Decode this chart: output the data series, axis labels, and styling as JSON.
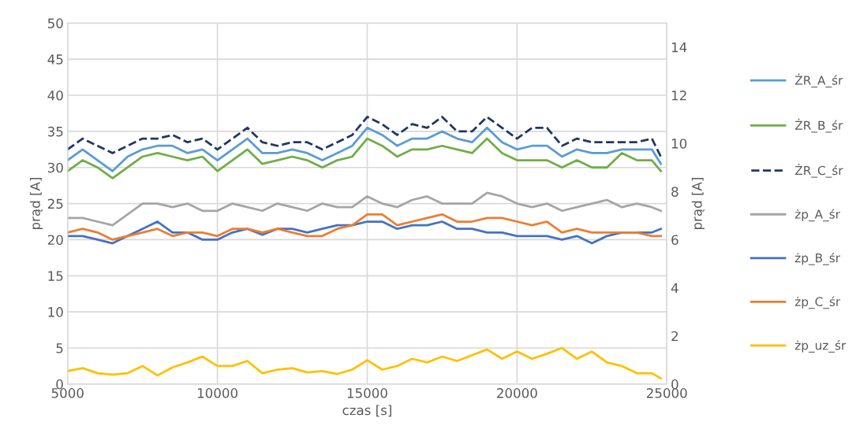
{
  "chart_data": {
    "type": "line",
    "xlabel": "czas [s]",
    "ylabel": "prąd [A]",
    "y2label": "prąd [A]",
    "x": [
      5000,
      5500,
      6000,
      6500,
      7000,
      7500,
      8000,
      8500,
      9000,
      9500,
      10000,
      10500,
      11000,
      11500,
      12000,
      12500,
      13000,
      13500,
      14000,
      14500,
      15000,
      15500,
      16000,
      16500,
      17000,
      17500,
      18000,
      18500,
      19000,
      19500,
      20000,
      20500,
      21000,
      21500,
      22000,
      22500,
      23000,
      23500,
      24000,
      24500,
      24800
    ],
    "xlim": [
      5000,
      25000
    ],
    "xticks": [
      5000,
      10000,
      15000,
      20000,
      25000
    ],
    "ylim": [
      0,
      50
    ],
    "yticks": [
      0,
      5,
      10,
      15,
      20,
      25,
      30,
      35,
      40,
      45,
      50
    ],
    "y2lim": [
      0,
      15
    ],
    "y2ticks": [
      0,
      2,
      4,
      6,
      8,
      10,
      12,
      14
    ],
    "grid": true,
    "legend": "right",
    "line_style": "solid",
    "marker": "none",
    "series": [
      {
        "name": "ŻR_A_śr",
        "color": "#5b9bd5",
        "values": [
          31,
          32.5,
          31,
          29.5,
          31.5,
          32.5,
          33,
          33,
          32,
          32.5,
          31,
          32.5,
          34,
          32,
          32,
          32.5,
          32,
          31,
          32,
          33,
          35.5,
          34.5,
          33,
          34,
          34,
          35,
          34,
          33.5,
          35.5,
          33.5,
          32.5,
          33,
          33,
          31.5,
          32.5,
          32,
          32,
          32.5,
          32.5,
          32.5,
          30.5
        ]
      },
      {
        "name": "ŻR_B_śr",
        "color": "#70ad47",
        "values": [
          29.5,
          31,
          30,
          28.5,
          30,
          31.5,
          32,
          31.5,
          31,
          31.5,
          29.5,
          31,
          32.5,
          30.5,
          31,
          31.5,
          31,
          30,
          31,
          31.5,
          34,
          33,
          31.5,
          32.5,
          32.5,
          33,
          32.5,
          32,
          34,
          32,
          31,
          31,
          31,
          30,
          31,
          30,
          30,
          32,
          31,
          31,
          29.5
        ]
      },
      {
        "name": "ŻR_C_śr",
        "color": "#1f3864",
        "line_style": "dashed",
        "values": [
          32.5,
          34,
          33,
          32,
          33,
          34,
          34,
          34.5,
          33.5,
          34,
          32.5,
          34,
          35.5,
          33.5,
          33,
          33.5,
          33.5,
          32.5,
          33.5,
          34.5,
          37,
          36,
          34.5,
          36,
          35.5,
          37,
          35,
          35,
          37,
          35.5,
          34,
          35.5,
          35.5,
          33,
          34,
          33.5,
          33.5,
          33.5,
          33.5,
          34,
          31.5
        ]
      },
      {
        "name": "żp_A_śr",
        "color": "#a5a5a5",
        "axis": "y2",
        "values": [
          6.9,
          6.9,
          6.75,
          6.6,
          7.05,
          7.5,
          7.5,
          7.35,
          7.5,
          7.2,
          7.2,
          7.5,
          7.35,
          7.2,
          7.5,
          7.35,
          7.2,
          7.5,
          7.35,
          7.35,
          7.8,
          7.5,
          7.35,
          7.65,
          7.8,
          7.5,
          7.5,
          7.5,
          7.95,
          7.8,
          7.5,
          7.35,
          7.5,
          7.2,
          7.35,
          7.5,
          7.65,
          7.35,
          7.5,
          7.35,
          7.2
        ]
      },
      {
        "name": "żp_B_śr",
        "color": "#4472c4",
        "axis": "y2",
        "values": [
          6.15,
          6.15,
          6,
          5.85,
          6.15,
          6.45,
          6.75,
          6.3,
          6.3,
          6,
          6,
          6.3,
          6.45,
          6.2,
          6.45,
          6.45,
          6.3,
          6.45,
          6.6,
          6.6,
          6.75,
          6.75,
          6.45,
          6.6,
          6.6,
          6.75,
          6.45,
          6.45,
          6.3,
          6.3,
          6.15,
          6.15,
          6.15,
          6,
          6.15,
          5.85,
          6.15,
          6.3,
          6.3,
          6.3,
          6.45
        ]
      },
      {
        "name": "żp_C_śr",
        "color": "#ed7d31",
        "axis": "y2",
        "values": [
          6.3,
          6.45,
          6.3,
          6,
          6.15,
          6.3,
          6.45,
          6.15,
          6.3,
          6.3,
          6.15,
          6.45,
          6.45,
          6.3,
          6.45,
          6.3,
          6.15,
          6.15,
          6.45,
          6.6,
          7.05,
          7.05,
          6.6,
          6.75,
          6.9,
          7.05,
          6.75,
          6.75,
          6.9,
          6.9,
          6.75,
          6.6,
          6.75,
          6.3,
          6.45,
          6.3,
          6.3,
          6.3,
          6.3,
          6.15,
          6.15
        ]
      },
      {
        "name": "żp_uz_śr",
        "color": "#ffc000",
        "axis": "y2",
        "values": [
          0.54,
          0.66,
          0.45,
          0.39,
          0.45,
          0.75,
          0.36,
          0.69,
          0.9,
          1.14,
          0.75,
          0.75,
          0.96,
          0.45,
          0.6,
          0.66,
          0.48,
          0.54,
          0.42,
          0.6,
          0.99,
          0.6,
          0.75,
          1.05,
          0.9,
          1.14,
          0.96,
          1.2,
          1.44,
          1.05,
          1.35,
          1.05,
          1.26,
          1.5,
          1.05,
          1.35,
          0.9,
          0.75,
          0.45,
          0.45,
          0.24
        ]
      }
    ]
  }
}
